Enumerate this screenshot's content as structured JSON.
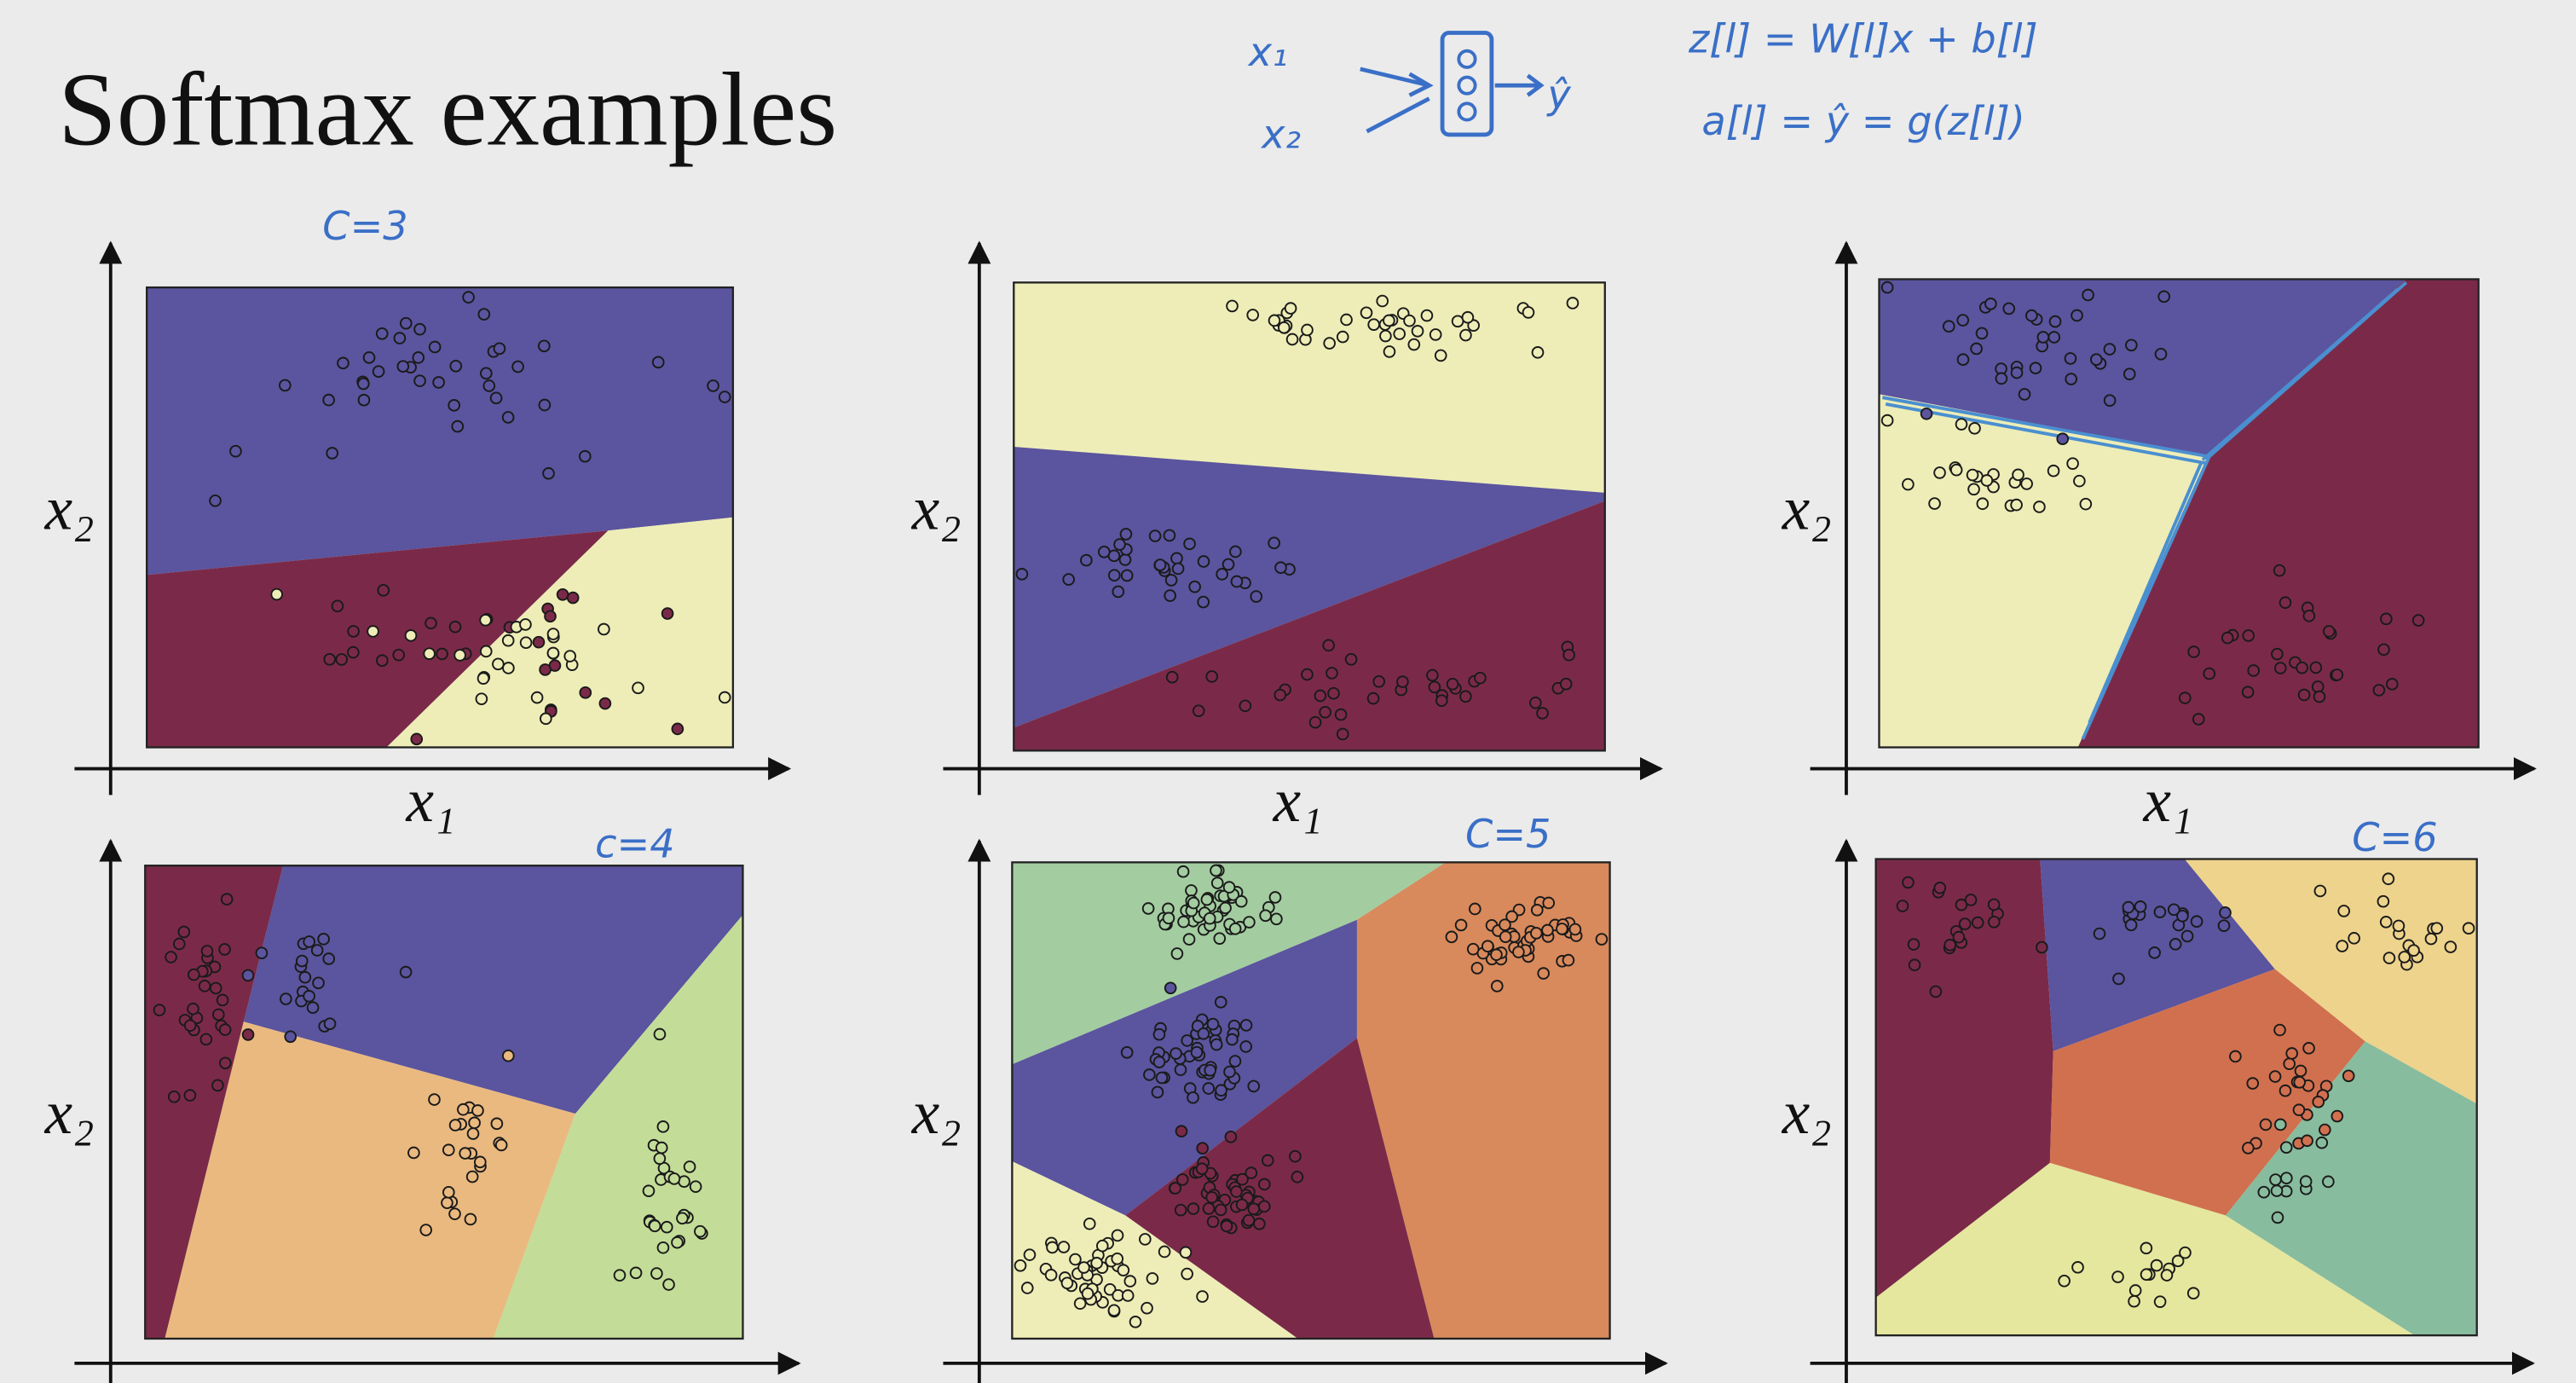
{
  "title": "Softmax examples",
  "annotations": {
    "inputs": [
      "x₁",
      "x₂"
    ],
    "output": "ŷ",
    "formula_1": "z[l] = W[l]x + b[l]",
    "formula_2": "a[l] = ŷ = g(z[l])"
  },
  "panels": [
    {
      "note": "C=3",
      "x_label": "x₁",
      "y_label": "x₂"
    },
    {
      "x_label": "x₁",
      "y_label": "x₂"
    },
    {
      "x_label": "x₁",
      "y_label": "x₂"
    },
    {
      "note": "c=4",
      "y_label": "x₂"
    },
    {
      "note": "C=5",
      "y_label": "x₂"
    },
    {
      "note": "C=6",
      "y_label": "x₂"
    }
  ]
}
